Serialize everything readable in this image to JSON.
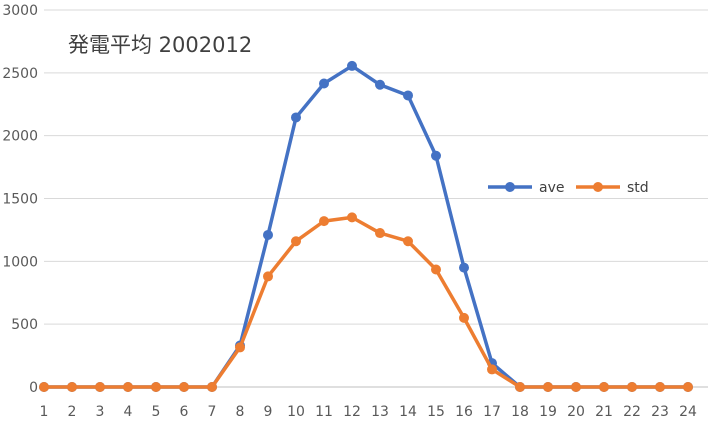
{
  "chart_data": {
    "type": "line",
    "title": "発電平均 2002012",
    "xlabel": "",
    "ylabel": "",
    "categories": [
      "1",
      "2",
      "3",
      "4",
      "5",
      "6",
      "7",
      "8",
      "9",
      "10",
      "11",
      "12",
      "13",
      "14",
      "15",
      "16",
      "17",
      "18",
      "19",
      "20",
      "21",
      "22",
      "23",
      "24"
    ],
    "ylim": [
      0,
      3000
    ],
    "yticks": [
      0,
      500,
      1000,
      1500,
      2000,
      2500,
      3000
    ],
    "grid": true,
    "legend_position": "right",
    "series": [
      {
        "name": "ave",
        "color": "#4472C4",
        "values": [
          0,
          0,
          0,
          0,
          0,
          0,
          0,
          330,
          1210,
          2145,
          2415,
          2555,
          2405,
          2320,
          1840,
          950,
          190,
          0,
          0,
          0,
          0,
          0,
          0,
          0
        ]
      },
      {
        "name": "std",
        "color": "#ED7D31",
        "values": [
          0,
          0,
          0,
          0,
          0,
          0,
          0,
          315,
          880,
          1160,
          1320,
          1350,
          1225,
          1160,
          935,
          550,
          140,
          0,
          0,
          0,
          0,
          0,
          0,
          0
        ]
      }
    ]
  }
}
